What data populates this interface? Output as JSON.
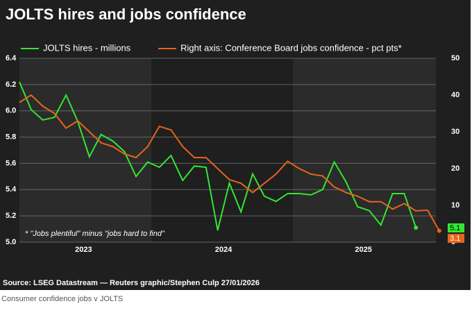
{
  "chart_data": {
    "type": "line",
    "title": "JOLTS hires and jobs confidence",
    "annotation": "* \"Jobs plentiful\" minus \"jobs hard to find\"",
    "source": "Source: LSEG Datastream — Reuters graphic/Stephen Culp 27/01/2026",
    "caption": "Consumer confidence jobs v JOLTS",
    "categories": [
      null,
      null,
      null,
      null,
      null,
      null,
      "2023",
      null,
      null,
      null,
      null,
      null,
      null,
      null,
      null,
      null,
      null,
      null,
      "2024",
      null,
      null,
      null,
      null,
      null,
      null,
      null,
      null,
      null,
      null,
      null,
      "2025",
      null,
      null,
      null,
      null,
      null,
      null
    ],
    "series": [
      {
        "name": "JOLTS hires - millions",
        "color": "#33e633",
        "values": [
          6.22,
          6.01,
          5.93,
          5.95,
          6.12,
          5.92,
          5.65,
          5.82,
          5.77,
          5.69,
          5.5,
          5.61,
          5.57,
          5.66,
          5.47,
          5.58,
          5.57,
          5.09,
          5.45,
          5.23,
          5.52,
          5.35,
          5.31,
          5.37,
          5.37,
          5.36,
          5.4,
          5.61,
          5.46,
          5.27,
          5.24,
          5.13,
          5.37,
          5.37,
          5.11,
          null,
          null
        ],
        "value_labels": [
          null,
          null,
          null,
          null,
          null,
          null,
          null,
          null,
          null,
          null,
          null,
          null,
          null,
          null,
          null,
          null,
          null,
          null,
          null,
          null,
          null,
          null,
          null,
          null,
          null,
          null,
          null,
          null,
          null,
          null,
          null,
          null,
          null,
          null,
          "5.1",
          null,
          null
        ]
      },
      {
        "name": "Right axis: Conference Board jobs confidence - pct pts*",
        "color": "#e8641b",
        "axis": "y2",
        "values": [
          38,
          40,
          37,
          35,
          31,
          33,
          30,
          27,
          26,
          24,
          23,
          26,
          31.5,
          30.5,
          26,
          23,
          23,
          20,
          17,
          16,
          13.5,
          16,
          18.5,
          22,
          20,
          18.5,
          18,
          15,
          13.5,
          12.5,
          11,
          11,
          9,
          10.5,
          8.5,
          8.7,
          3.1
        ],
        "value_labels": [
          null,
          null,
          null,
          null,
          null,
          null,
          null,
          null,
          null,
          null,
          null,
          null,
          null,
          null,
          null,
          null,
          null,
          null,
          null,
          null,
          null,
          null,
          null,
          null,
          null,
          null,
          null,
          null,
          null,
          null,
          null,
          null,
          null,
          null,
          null,
          null,
          "3.1"
        ]
      }
    ],
    "ylim": [
      5,
      6.4
    ],
    "yticks": [
      {
        "value": 5,
        "label": "5.0"
      },
      5.2,
      5.4,
      5.6,
      5.8,
      {
        "value": 6,
        "label": "6.0"
      },
      6.2,
      6.4
    ],
    "y2lim": [
      0,
      50
    ],
    "y2ticks": [
      0,
      10,
      20,
      30,
      40,
      50
    ],
    "grid": true
  }
}
